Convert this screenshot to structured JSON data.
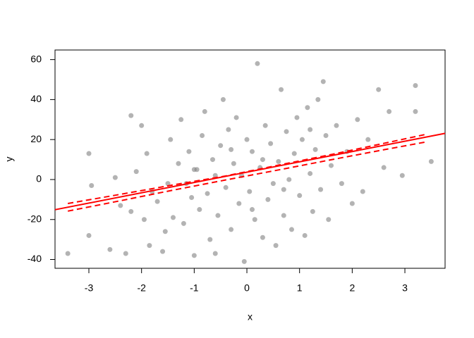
{
  "chart_data": {
    "type": "scatter",
    "xlabel": "x",
    "ylabel": "y",
    "xlim": [
      -3.643,
      3.763
    ],
    "ylim": [
      -44.4,
      64.8
    ],
    "xticks": [
      -3,
      -2,
      -1,
      0,
      1,
      2,
      3
    ],
    "yticks": [
      -40,
      -20,
      0,
      20,
      40,
      60
    ],
    "point_color": "rgba(128,128,128,0.6)",
    "x": [
      -3.4,
      -3.0,
      -2.95,
      -3.0,
      -2.6,
      -2.5,
      -2.4,
      -2.3,
      -2.2,
      -2.2,
      -2.1,
      -2.0,
      -1.95,
      -1.9,
      -1.85,
      -1.8,
      -1.7,
      -1.6,
      -1.55,
      -1.5,
      -1.45,
      -1.4,
      -1.3,
      -1.25,
      -1.2,
      -1.15,
      -1.1,
      -1.05,
      -1.0,
      -0.95,
      -0.9,
      -0.85,
      -0.8,
      -0.75,
      -0.7,
      -0.65,
      -0.6,
      -0.55,
      -0.5,
      -0.45,
      -0.4,
      -0.35,
      -0.3,
      -0.25,
      -0.2,
      -0.15,
      -0.1,
      -0.05,
      0,
      0.05,
      0.1,
      0.15,
      0.2,
      0.25,
      0.3,
      0.35,
      0.4,
      0.45,
      0.5,
      0.55,
      0.6,
      0.65,
      0.7,
      0.75,
      0.8,
      0.85,
      0.9,
      0.95,
      1.0,
      1.05,
      1.1,
      1.15,
      1.2,
      1.25,
      1.3,
      1.35,
      1.4,
      1.45,
      1.5,
      1.55,
      1.6,
      1.7,
      1.8,
      1.9,
      2.0,
      2.1,
      2.2,
      2.3,
      2.5,
      2.6,
      2.7,
      2.95,
      3.2,
      3.2,
      3.5,
      0.3,
      -0.3,
      0.1,
      -0.6,
      0.7,
      -1.0,
      1.2
    ],
    "y": [
      -37,
      13,
      -3,
      -28,
      -35,
      1,
      -13,
      -37,
      -16,
      32,
      4,
      27,
      -20,
      13,
      -33,
      -6,
      -11,
      -36,
      -26,
      -2,
      20,
      -19,
      8,
      30,
      -22,
      -2,
      14,
      -9,
      -38,
      5,
      -15,
      22,
      34,
      -7,
      -30,
      10,
      -37,
      -18,
      17,
      40,
      -4,
      25,
      -25,
      8,
      31,
      -12,
      2,
      -41,
      20,
      -6,
      14,
      -20,
      58,
      6,
      -29,
      27,
      -10,
      18,
      -2,
      -33,
      9,
      45,
      -18,
      24,
      0,
      -25,
      13,
      31,
      -8,
      20,
      -28,
      36,
      3,
      -16,
      15,
      40,
      -5,
      49,
      22,
      -20,
      7,
      27,
      -2,
      14,
      -12,
      30,
      -6,
      20,
      45,
      6,
      34,
      2,
      47,
      34,
      9,
      10,
      15,
      -15,
      2,
      -5,
      5,
      25
    ],
    "fit": {
      "color": "#ff0000",
      "x": [
        -3.643,
        3.763
      ],
      "y": [
        -15.1,
        23.1
      ]
    },
    "bands": {
      "color": "#ff0000",
      "x": [
        -3.4,
        -2.4,
        -1.4,
        -0.4,
        0.6,
        1.6,
        2.6,
        3.4
      ],
      "lower": [
        -15.8,
        -10.6,
        -5.3,
        -0.2,
        4.8,
        9.9,
        14.9,
        18.8
      ],
      "upper": [
        -12.0,
        -7.4,
        -2.7,
        1.8,
        7.2,
        12.5,
        18.1,
        22.6
      ]
    }
  }
}
